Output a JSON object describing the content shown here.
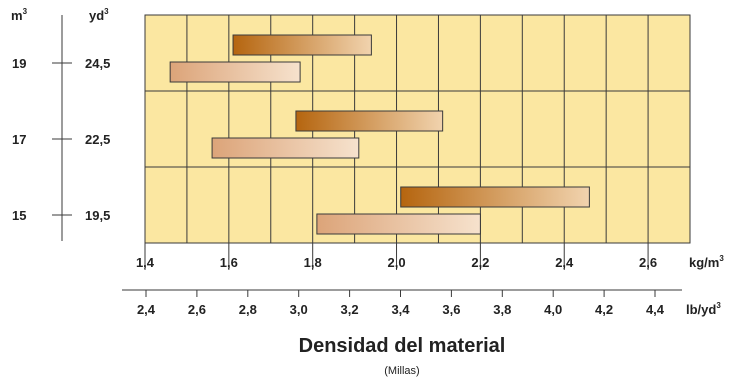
{
  "chart_data": {
    "type": "bar",
    "orientation": "horizontal-range",
    "title": "Densidad del material",
    "subtitle": "(Millas)",
    "x_primary": {
      "unit": "kg/m",
      "unit_sup": "3",
      "range": [
        1.4,
        2.7
      ],
      "ticks": [
        "1,4",
        "1,6",
        "1,8",
        "2,0",
        "2,2",
        "2,4",
        "2,6"
      ]
    },
    "x_secondary": {
      "unit": "lb/yd",
      "unit_sup": "3",
      "ticks": [
        "2,4",
        "2,6",
        "2,8",
        "3,0",
        "3,2",
        "3,4",
        "3,6",
        "3,8",
        "4,0",
        "4,2",
        "4,4"
      ]
    },
    "y_left_unit": {
      "text": "m",
      "sup": "3"
    },
    "y_right_unit": {
      "text": "yd",
      "sup": "3"
    },
    "rows": [
      {
        "m3": "19",
        "yd3": "24,5",
        "bars": [
          {
            "style": "dark",
            "range": [
              1.61,
              1.94
            ]
          },
          {
            "style": "light",
            "range": [
              1.46,
              1.77
            ]
          }
        ]
      },
      {
        "m3": "17",
        "yd3": "22,5",
        "bars": [
          {
            "style": "dark",
            "range": [
              1.76,
              2.11
            ]
          },
          {
            "style": "light",
            "range": [
              1.56,
              1.91
            ]
          }
        ]
      },
      {
        "m3": "15",
        "yd3": "19,5",
        "bars": [
          {
            "style": "dark",
            "range": [
              2.01,
              2.46
            ]
          },
          {
            "style": "light",
            "range": [
              1.81,
              2.2
            ]
          }
        ]
      }
    ],
    "grid": true,
    "colors": {
      "plot_bg": "#fbe7a1",
      "grid": "#3a3a3a",
      "dark_bar_start": "#b5650f",
      "dark_bar_end": "#f1d3ae",
      "light_bar_start": "#dca479",
      "light_bar_end": "#f6e2cd"
    }
  }
}
